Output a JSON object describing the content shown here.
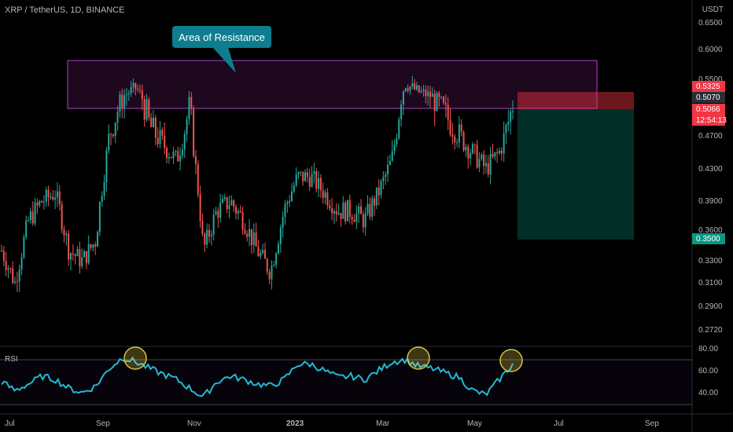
{
  "header": {
    "title": "XRP / TetherUS, 1D, BINANCE",
    "currency": "USDT"
  },
  "annotation": {
    "label": "Area of Resistance"
  },
  "rsi": {
    "label": "RSI"
  },
  "chart_data": {
    "type": "candlestick",
    "symbol": "XRP / TetherUS",
    "interval": "1D",
    "exchange": "BINANCE",
    "price_axis_ticks": [
      "0.6500",
      "0.6000",
      "0.5500",
      "0.5070",
      "0.4700",
      "0.4300",
      "0.3900",
      "0.3600",
      "0.3300",
      "0.3100",
      "0.2900",
      "0.2720"
    ],
    "time_axis_labels": [
      "Jul",
      "Sep",
      "Nov",
      "2023",
      "Mar",
      "May",
      "Jul",
      "Sep"
    ],
    "price_tags": [
      {
        "value": "0.5325",
        "color": "#f23645"
      },
      {
        "value": "0.5070",
        "color": "#2a2e39"
      },
      {
        "value": "0.5066",
        "color": "#f23645"
      },
      {
        "value": "12:54:13",
        "color": "#f23645"
      },
      {
        "value": "0.3500",
        "color": "#089981"
      }
    ],
    "resistance_zone": {
      "from": 0.505,
      "to": 0.58
    },
    "trade_setup": {
      "stop": 0.5325,
      "entry": 0.5066,
      "target": 0.35
    },
    "price_approx": [
      0.34,
      0.31,
      0.37,
      0.39,
      0.4,
      0.34,
      0.33,
      0.35,
      0.47,
      0.51,
      0.53,
      0.48,
      0.46,
      0.44,
      0.5,
      0.34,
      0.38,
      0.39,
      0.37,
      0.34,
      0.32,
      0.38,
      0.42,
      0.42,
      0.4,
      0.38,
      0.38,
      0.37,
      0.4,
      0.44,
      0.54,
      0.52,
      0.51,
      0.49,
      0.47,
      0.45,
      0.43,
      0.45,
      0.5
    ],
    "rsi_axis_ticks": [
      "80.00",
      "60.00",
      "40.00"
    ],
    "rsi_approx": [
      50,
      42,
      48,
      55,
      52,
      44,
      40,
      46,
      62,
      72,
      68,
      62,
      57,
      52,
      44,
      36,
      50,
      55,
      52,
      48,
      46,
      52,
      66,
      66,
      60,
      54,
      55,
      52,
      60,
      68,
      70,
      64,
      62,
      58,
      54,
      42,
      38,
      52,
      66
    ]
  }
}
